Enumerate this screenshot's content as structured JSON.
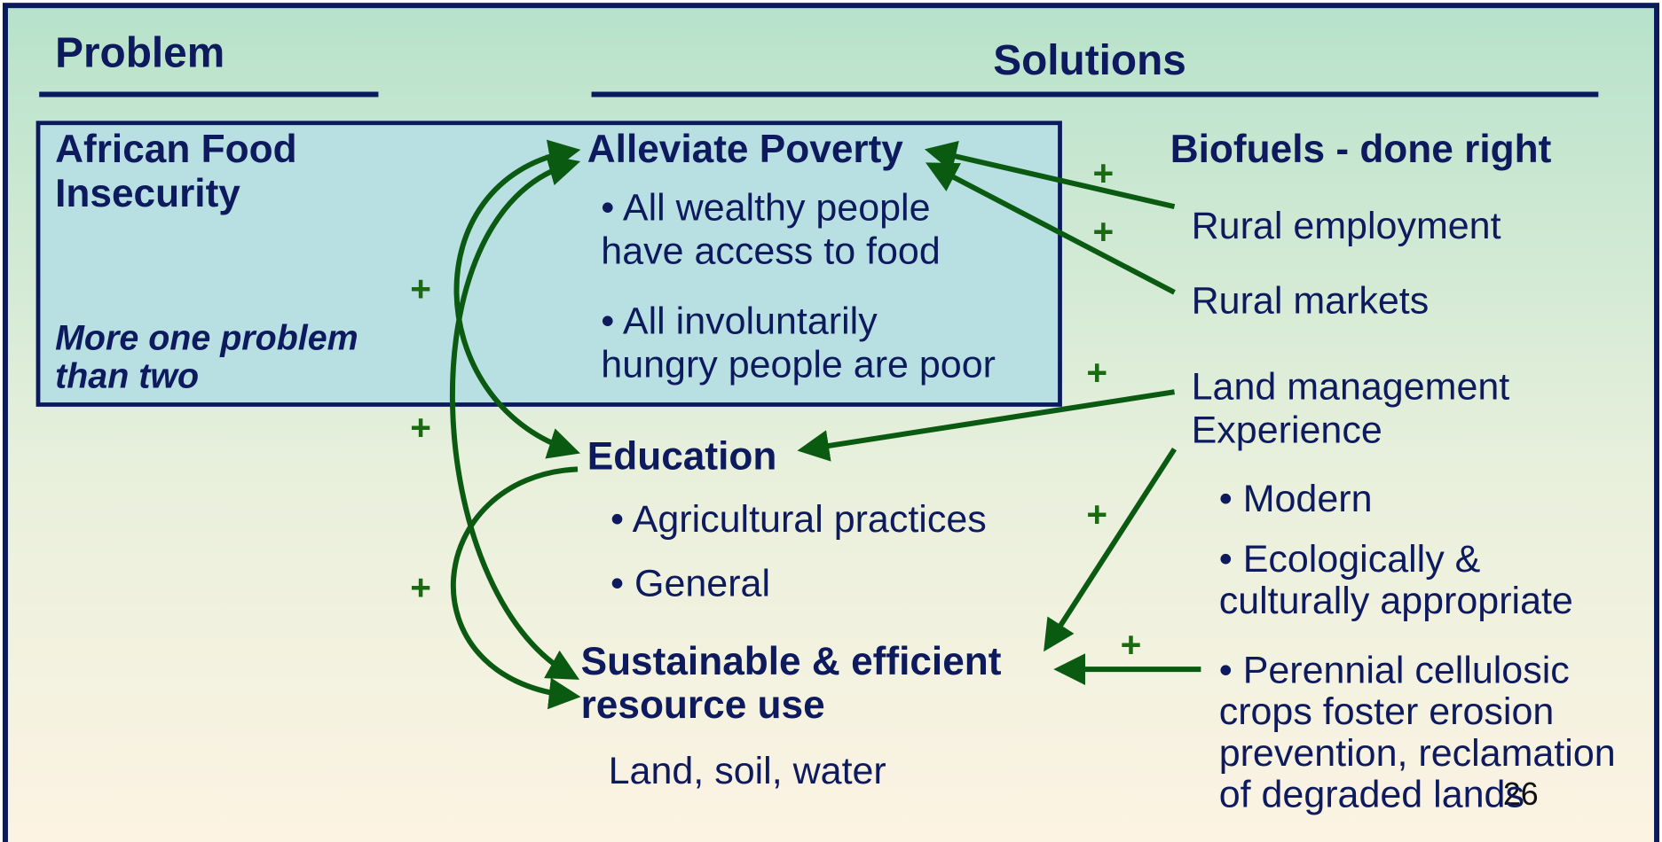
{
  "headers": {
    "problem": "Problem",
    "solutions": "Solutions"
  },
  "problem": {
    "title_lines": [
      "African Food",
      "Insecurity"
    ],
    "note_lines": [
      "More one problem",
      "than two"
    ]
  },
  "goals": [
    {
      "title_lines": [
        "Alleviate Poverty"
      ],
      "items": [
        [
          "• All wealthy people",
          "have access to food"
        ],
        [
          "• All involuntarily",
          "hungry people are poor"
        ]
      ]
    },
    {
      "title_lines": [
        "Education"
      ],
      "items": [
        [
          "• Agricultural practices"
        ],
        [
          "• General"
        ]
      ]
    },
    {
      "title_lines": [
        "Sustainable & efficient",
        "resource use"
      ],
      "items": [
        [
          "Land, soil, water"
        ]
      ]
    }
  ],
  "biofuels": {
    "title": "Biofuels - done right",
    "items": [
      [
        "Rural employment"
      ],
      [
        "Rural markets"
      ],
      [
        "Land management",
        "Experience"
      ]
    ],
    "bullets": [
      [
        "• Modern"
      ],
      [
        "• Ecologically &",
        "culturally appropriate"
      ],
      [
        "• Perennial cellulosic",
        "crops foster erosion",
        "prevention, reclamation",
        "of degraded lands"
      ]
    ]
  },
  "link_labels": [
    "+",
    "+",
    "+",
    "+",
    "+",
    "+",
    "+",
    "+"
  ],
  "page_number": "26"
}
